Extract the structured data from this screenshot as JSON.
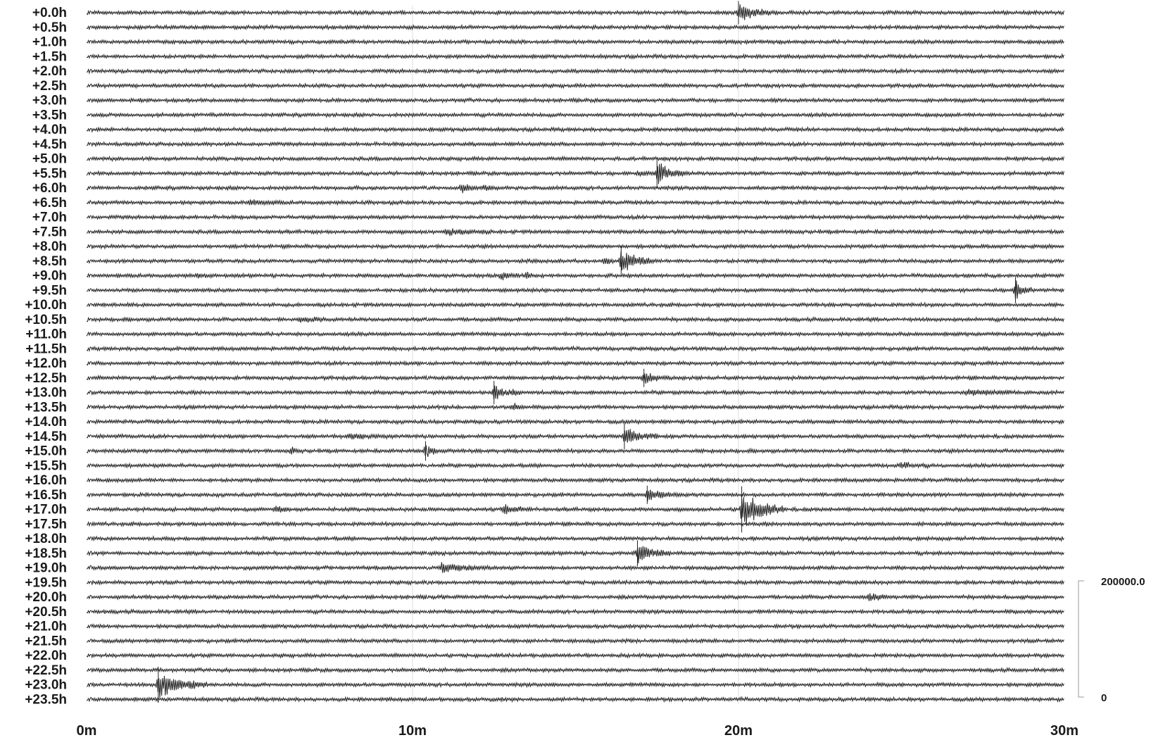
{
  "chart_data": {
    "type": "line",
    "title": "",
    "xlabel": "",
    "ylabel": "",
    "x_ticks": [
      "0m",
      "10m",
      "20m",
      "30m"
    ],
    "xlim_minutes": [
      0,
      30
    ],
    "row_labels": [
      "+0.0h",
      "+0.5h",
      "+1.0h",
      "+1.5h",
      "+2.0h",
      "+2.5h",
      "+3.0h",
      "+3.5h",
      "+4.0h",
      "+4.5h",
      "+5.0h",
      "+5.5h",
      "+6.0h",
      "+6.5h",
      "+7.0h",
      "+7.5h",
      "+8.0h",
      "+8.5h",
      "+9.0h",
      "+9.5h",
      "+10.0h",
      "+10.5h",
      "+11.0h",
      "+11.5h",
      "+12.0h",
      "+12.5h",
      "+13.0h",
      "+13.5h",
      "+14.0h",
      "+14.5h",
      "+15.0h",
      "+15.5h",
      "+16.0h",
      "+16.5h",
      "+17.0h",
      "+17.5h",
      "+18.0h",
      "+18.5h",
      "+19.0h",
      "+19.5h",
      "+20.0h",
      "+20.5h",
      "+21.0h",
      "+21.5h",
      "+22.0h",
      "+22.5h",
      "+23.0h",
      "+23.5h"
    ],
    "scale": {
      "top_label": "200000.0",
      "bottom_label": "0"
    },
    "grid": true,
    "events": [
      {
        "row": 0,
        "minute": 20.0,
        "amplitude": 1.4,
        "duration": 1.2
      },
      {
        "row": 11,
        "minute": 17.5,
        "amplitude": 1.9,
        "duration": 0.9
      },
      {
        "row": 11,
        "minute": 16.9,
        "amplitude": 0.6,
        "duration": 0.4
      },
      {
        "row": 12,
        "minute": 11.5,
        "amplitude": 0.9,
        "duration": 0.5
      },
      {
        "row": 12,
        "minute": 12.2,
        "amplitude": 0.5,
        "duration": 0.4
      },
      {
        "row": 13,
        "minute": 5.0,
        "amplitude": 0.4,
        "duration": 1.0
      },
      {
        "row": 15,
        "minute": 11.0,
        "amplitude": 0.5,
        "duration": 1.5
      },
      {
        "row": 17,
        "minute": 16.4,
        "amplitude": 1.9,
        "duration": 1.0
      },
      {
        "row": 17,
        "minute": 15.9,
        "amplitude": 0.6,
        "duration": 0.3
      },
      {
        "row": 18,
        "minute": 12.7,
        "amplitude": 0.8,
        "duration": 0.6
      },
      {
        "row": 18,
        "minute": 13.5,
        "amplitude": 0.5,
        "duration": 0.3
      },
      {
        "row": 18,
        "minute": 3.4,
        "amplitude": 0.4,
        "duration": 0.3
      },
      {
        "row": 19,
        "minute": 28.5,
        "amplitude": 1.6,
        "duration": 0.5
      },
      {
        "row": 21,
        "minute": 6.5,
        "amplitude": 0.5,
        "duration": 0.9
      },
      {
        "row": 25,
        "minute": 17.1,
        "amplitude": 1.0,
        "duration": 0.8
      },
      {
        "row": 26,
        "minute": 12.5,
        "amplitude": 1.4,
        "duration": 0.6
      },
      {
        "row": 26,
        "minute": 13.1,
        "amplitude": 0.6,
        "duration": 0.3
      },
      {
        "row": 26,
        "minute": 27.0,
        "amplitude": 0.4,
        "duration": 2.0
      },
      {
        "row": 27,
        "minute": 13.1,
        "amplitude": 0.7,
        "duration": 0.4
      },
      {
        "row": 29,
        "minute": 16.5,
        "amplitude": 1.6,
        "duration": 1.0
      },
      {
        "row": 29,
        "minute": 8.0,
        "amplitude": 0.4,
        "duration": 1.5
      },
      {
        "row": 30,
        "minute": 10.4,
        "amplitude": 1.1,
        "duration": 0.6
      },
      {
        "row": 30,
        "minute": 6.3,
        "amplitude": 0.6,
        "duration": 0.2
      },
      {
        "row": 31,
        "minute": 25.0,
        "amplitude": 0.4,
        "duration": 1.0
      },
      {
        "row": 33,
        "minute": 17.2,
        "amplitude": 1.0,
        "duration": 1.0
      },
      {
        "row": 34,
        "minute": 20.1,
        "amplitude": 3.2,
        "duration": 1.3
      },
      {
        "row": 34,
        "minute": 12.8,
        "amplitude": 0.7,
        "duration": 0.9
      },
      {
        "row": 34,
        "minute": 5.8,
        "amplitude": 0.6,
        "duration": 0.5
      },
      {
        "row": 37,
        "minute": 16.9,
        "amplitude": 1.6,
        "duration": 1.0
      },
      {
        "row": 38,
        "minute": 10.9,
        "amplitude": 0.8,
        "duration": 1.4
      },
      {
        "row": 40,
        "minute": 24.0,
        "amplitude": 0.6,
        "duration": 0.8
      },
      {
        "row": 46,
        "minute": 2.2,
        "amplitude": 2.4,
        "duration": 1.5
      }
    ]
  }
}
